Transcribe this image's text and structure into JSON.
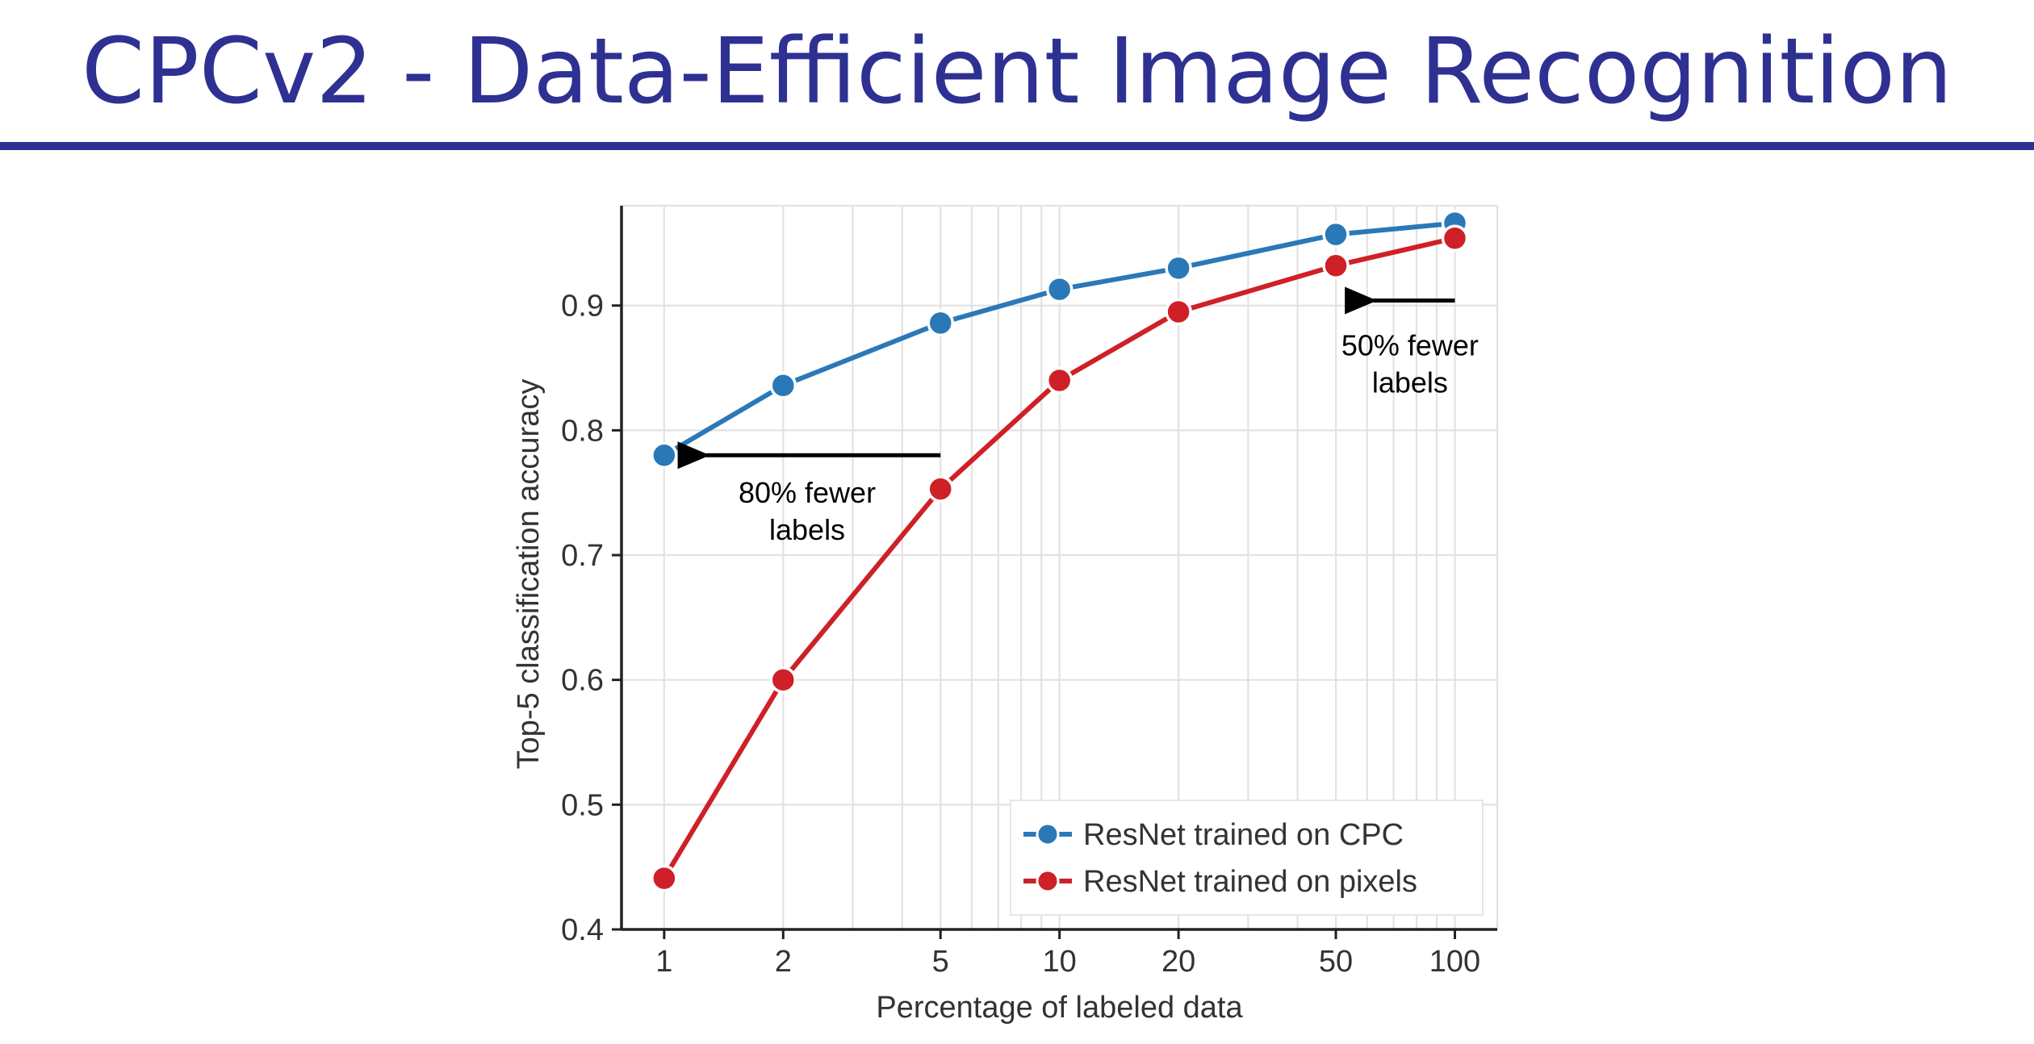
{
  "slide": {
    "title": "CPCv2 - Data-Efficient Image Recognition"
  },
  "colors": {
    "title": "#2e3192",
    "cpc_series": "#2a78b8",
    "pixels_series": "#cf2027",
    "grid": "#e2e2e2",
    "axis": "#222222"
  },
  "chart_data": {
    "type": "line",
    "title": "",
    "xlabel": "Percentage of labeled data",
    "ylabel": "Top-5 classification accuracy",
    "xscale": "log",
    "xlim": [
      0.78,
      128
    ],
    "ylim": [
      0.4,
      0.98
    ],
    "xticks": [
      1,
      2,
      5,
      10,
      20,
      50,
      100
    ],
    "xtick_labels": [
      "1",
      "2",
      "5",
      "10",
      "20",
      "50",
      "100"
    ],
    "yticks": [
      0.4,
      0.5,
      0.6,
      0.7,
      0.8,
      0.9
    ],
    "ytick_labels": [
      "0.4",
      "0.5",
      "0.6",
      "0.7",
      "0.8",
      "0.9"
    ],
    "grid": true,
    "legend_position": "lower-right",
    "series": [
      {
        "name": "ResNet trained on CPC",
        "color": "#2a78b8",
        "x": [
          1,
          2,
          5,
          10,
          20,
          50,
          100
        ],
        "y": [
          0.78,
          0.836,
          0.886,
          0.913,
          0.93,
          0.957,
          0.966
        ]
      },
      {
        "name": "ResNet trained on pixels",
        "color": "#cf2027",
        "x": [
          1,
          2,
          5,
          10,
          20,
          50,
          100
        ],
        "y": [
          0.441,
          0.6,
          0.753,
          0.84,
          0.895,
          0.932,
          0.954
        ]
      }
    ],
    "annotations": [
      {
        "lines": [
          "80% fewer",
          "labels"
        ],
        "arrow_from": [
          5,
          0.78
        ],
        "arrow_to": [
          1.15,
          0.78
        ],
        "text_at": [
          2.3,
          0.742
        ]
      },
      {
        "lines": [
          "50% fewer",
          "labels"
        ],
        "arrow_from": [
          100,
          0.904
        ],
        "arrow_to": [
          56,
          0.904
        ],
        "text_at": [
          77,
          0.86
        ]
      }
    ]
  }
}
